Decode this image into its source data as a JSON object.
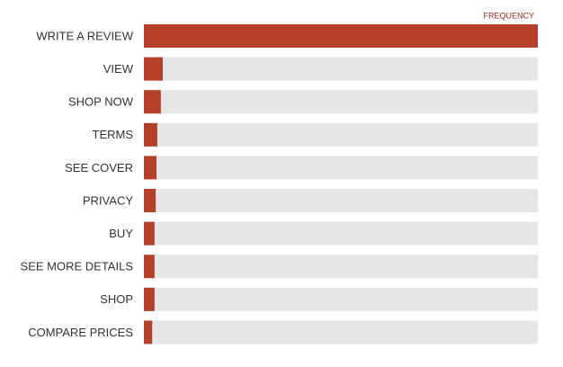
{
  "chart_data": {
    "type": "bar",
    "orientation": "horizontal",
    "x_label": "FREQUENCY",
    "categories": [
      "WRITE A REVIEW",
      "VIEW",
      "SHOP NOW",
      "TERMS",
      "SEE COVER",
      "PRIVACY",
      "BUY",
      "SEE MORE DETAILS",
      "SHOP",
      "COMPARE PRICES"
    ],
    "values": [
      100,
      4.8,
      4.3,
      3.4,
      3.2,
      3.0,
      2.7,
      2.7,
      2.7,
      2.1
    ],
    "color": "#b5402a",
    "track_color": "#e6e6e6",
    "xlim": [
      0,
      100
    ]
  }
}
